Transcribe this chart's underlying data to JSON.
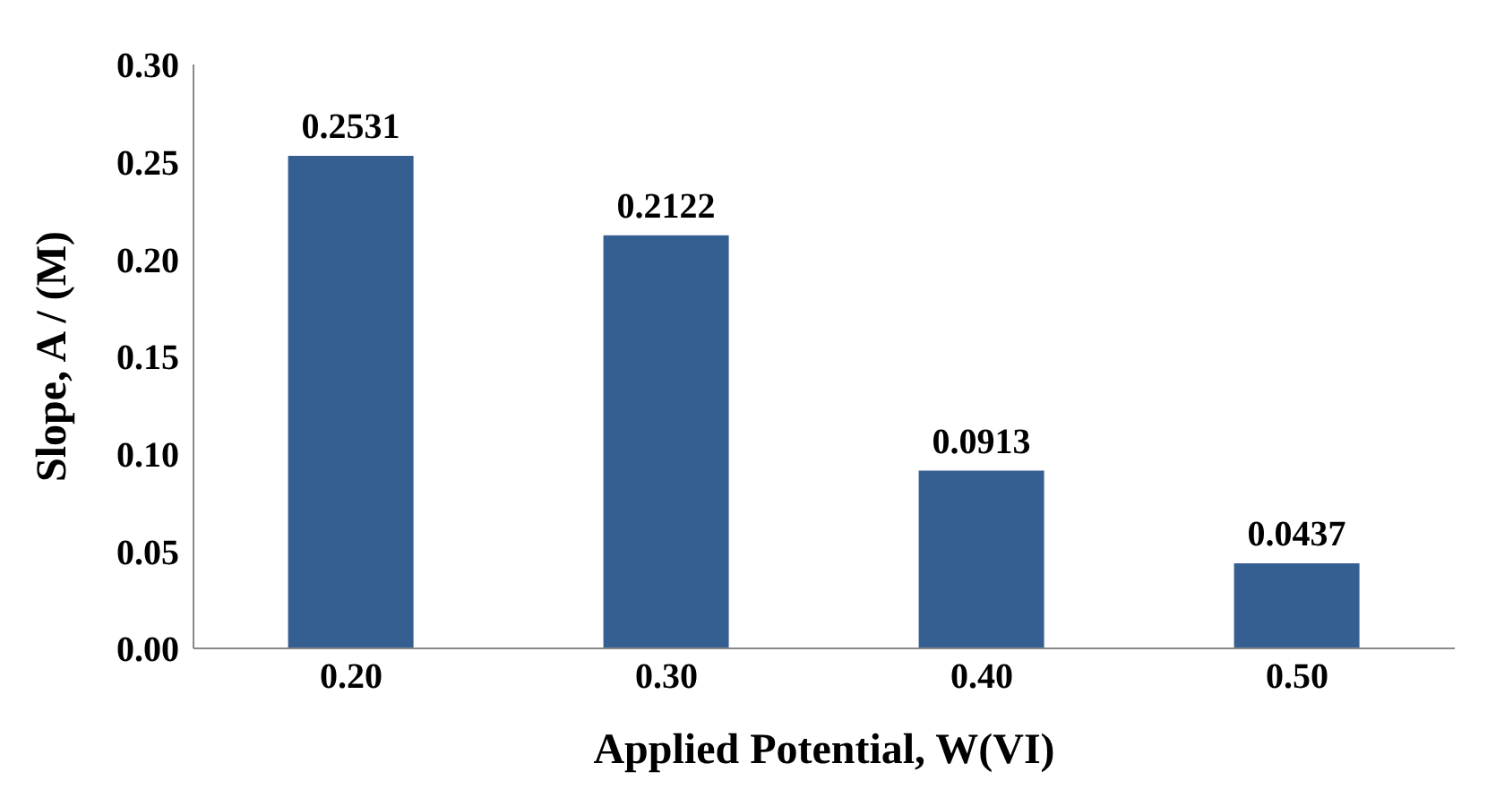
{
  "chart_data": {
    "type": "bar",
    "xlabel": "Applied Potential, W(VI)",
    "ylabel": "Slope, A / (M)",
    "categories": [
      "0.20",
      "0.30",
      "0.40",
      "0.50"
    ],
    "values": [
      0.2531,
      0.2122,
      0.0913,
      0.0437
    ],
    "color": "#365f91",
    "ylim": [
      0,
      0.3
    ],
    "yticks": [
      {
        "value": 0,
        "label": "0.00"
      },
      {
        "value": 0.05,
        "label": "0.05"
      },
      {
        "value": 0.1,
        "label": "0.10"
      },
      {
        "value": 0.15,
        "label": "0.15"
      },
      {
        "value": 0.2,
        "label": "0.20"
      },
      {
        "value": 0.25,
        "label": "0.25"
      },
      {
        "value": 0.3,
        "label": "0.30"
      }
    ],
    "data_labels": true,
    "grid": false,
    "legend": false
  }
}
